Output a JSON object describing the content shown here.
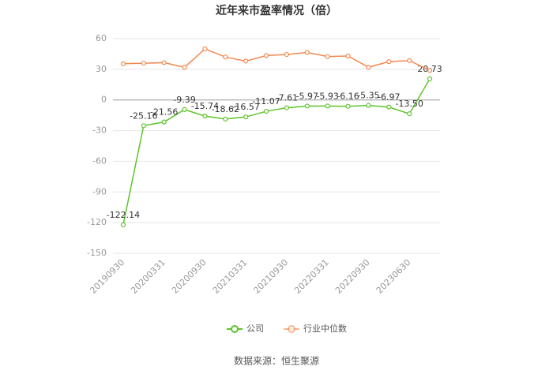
{
  "chart_data": {
    "type": "line",
    "title": "近年来市盈率情况（倍）",
    "categories": [
      "20190930",
      null,
      "20200331",
      null,
      "20200930",
      null,
      "20210331",
      null,
      "20210930",
      null,
      "20220331",
      null,
      "20220930",
      null,
      "20230630",
      null
    ],
    "series": [
      {
        "name": "公司",
        "color": "#5ec42a",
        "values": [
          -122.14,
          -25.16,
          -21.56,
          -9.39,
          -15.74,
          -18.62,
          -16.57,
          -11.07,
          -7.61,
          -5.97,
          -5.93,
          -6.16,
          -5.35,
          -6.97,
          -13.5,
          20.73
        ],
        "value_labels": [
          "-122.14",
          "-25.16",
          "-21.56",
          "-9.39",
          "-15.74",
          "-18.62",
          "-16.57",
          "-11.07",
          "-7.61",
          "-5.97",
          "-5.93",
          "-6.16",
          "-5.35",
          "-6.97",
          "-13.50",
          "20.73"
        ]
      },
      {
        "name": "行业中位数",
        "color": "#f4884f",
        "values": [
          35.5,
          36,
          36.5,
          32,
          50,
          42,
          38,
          43.5,
          44.5,
          46.5,
          42.5,
          43,
          32,
          37.5,
          38.5,
          29
        ]
      }
    ],
    "ylim": [
      -150,
      60
    ],
    "yticks": [
      -150,
      -120,
      -90,
      -60,
      -30,
      0,
      30,
      60
    ],
    "grid": true,
    "source": "数据来源：恒生聚源"
  }
}
